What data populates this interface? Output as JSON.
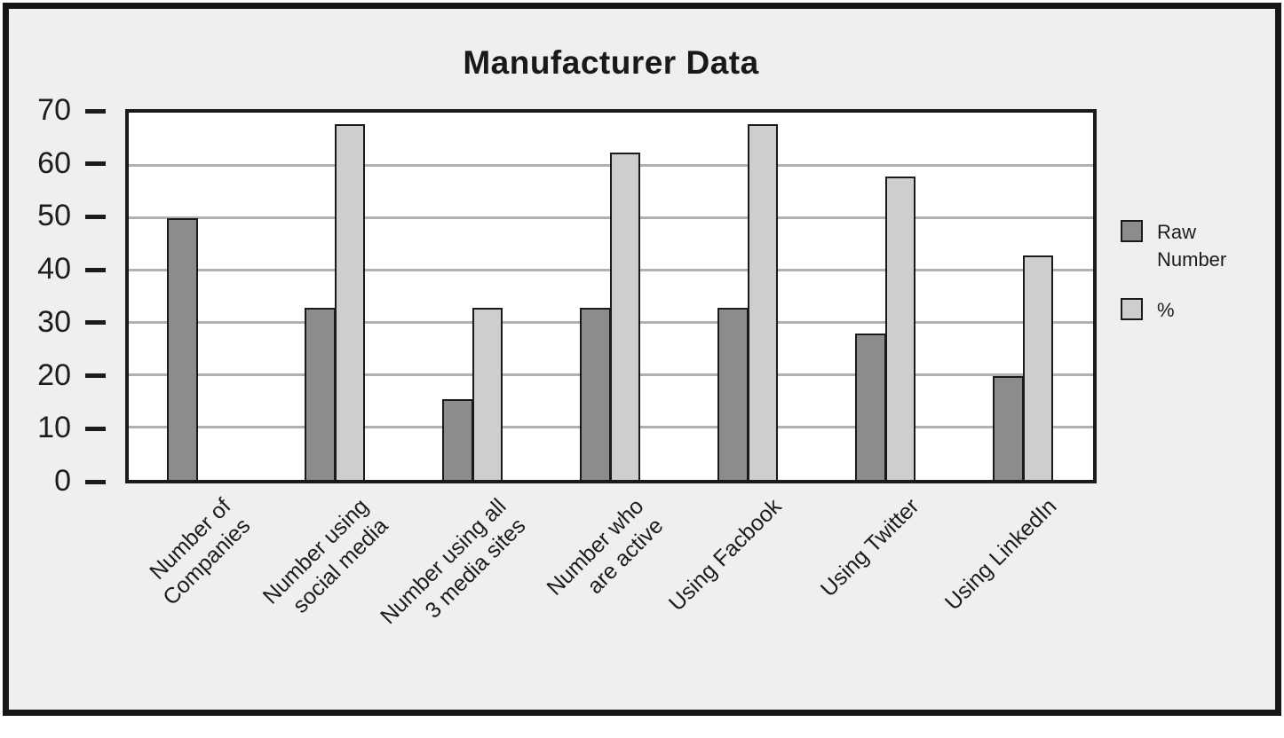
{
  "chart_data": {
    "type": "bar",
    "title": "Manufacturer Data",
    "categories": [
      "Number of\nCompanies",
      "Number using\nsocial media",
      "Number using all\n3 media sites",
      "Number who\nare active",
      "Using Facbook",
      "Using Twitter",
      "Using LinkedIn"
    ],
    "series": [
      {
        "name": "Raw Number",
        "color": "#8c8c8c",
        "values": [
          49.5,
          32.5,
          15,
          32.5,
          32.5,
          27.5,
          19.5
        ]
      },
      {
        "name": "%",
        "color": "#cecece",
        "values": [
          null,
          67.5,
          32.5,
          62,
          67.5,
          57.5,
          42.5
        ]
      }
    ],
    "ylim": [
      0,
      70
    ],
    "yticks": [
      70,
      60,
      50,
      40,
      30,
      20,
      10,
      0
    ],
    "grid": "horizontal",
    "legend_position": "right",
    "colors": {
      "panel_background": "#f0efed",
      "plot_background": "#ffffff",
      "gridline": "#b1b1b1",
      "border": "#1a1a1a"
    }
  }
}
